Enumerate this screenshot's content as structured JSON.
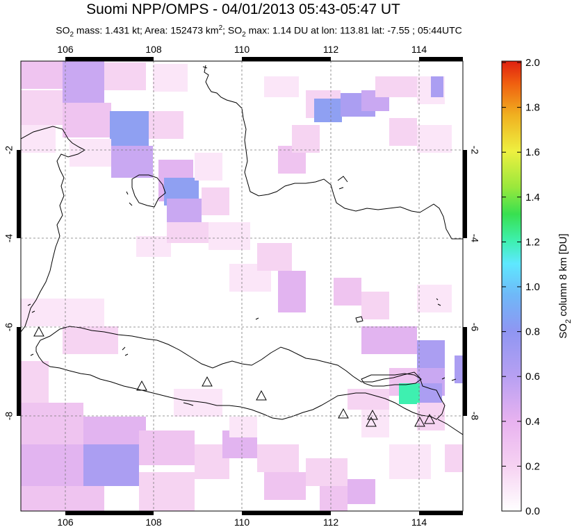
{
  "title": "Suomi NPP/OMPS - 04/01/2013 05:43-05:47 UT",
  "subtitle": {
    "prefix": "SO",
    "sub1": "2",
    "part1": " mass: 1.431 kt; Area: 152473 km",
    "sup": "2",
    "part2": "; SO",
    "sub2": "2",
    "part3": " max: 1.14 DU at lon: 113.81 lat: -7.55 ; 05:44UTC"
  },
  "map": {
    "lon_ticks": [
      "106",
      "108",
      "110",
      "112",
      "114"
    ],
    "lat_ticks": [
      "-2",
      "-4",
      "-6",
      "-8"
    ],
    "volcano_markers": 11
  },
  "colorbar": {
    "ticks": [
      "2.0",
      "1.8",
      "1.6",
      "1.4",
      "1.2",
      "1.0",
      "0.8",
      "0.6",
      "0.4",
      "0.2",
      "0.0"
    ],
    "label_prefix": "SO",
    "label_sub": "2",
    "label_rest": " column 8 km [DU]",
    "colors": [
      "#ffffff",
      "#f7c8f0",
      "#b49cf0",
      "#7f9af0",
      "#5ad8ff",
      "#3cf0a0",
      "#40e040",
      "#b8f040",
      "#f0f040",
      "#f0b020",
      "#f06010",
      "#e02010"
    ]
  }
}
